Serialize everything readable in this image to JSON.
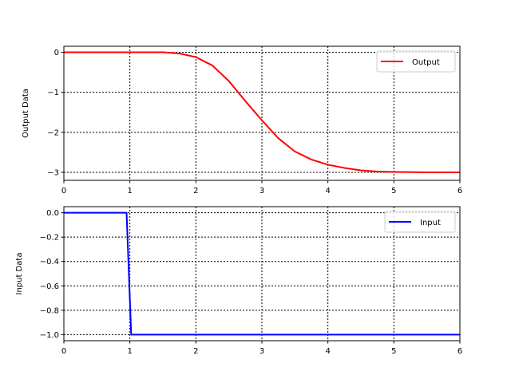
{
  "chart_data": [
    {
      "type": "line",
      "title": "",
      "xlabel": "",
      "ylabel": "Output Data",
      "xlim": [
        0,
        6
      ],
      "ylim": [
        -3.2,
        0.15
      ],
      "xticks": [
        0,
        1,
        2,
        3,
        4,
        5,
        6
      ],
      "xtick_labels": [
        "0",
        "1",
        "2",
        "3",
        "4",
        "5",
        "6"
      ],
      "yticks": [
        0,
        -1,
        -2,
        -3
      ],
      "ytick_labels": [
        "0",
        "−1",
        "−2",
        "−3"
      ],
      "grid": true,
      "legend_position": "top-right",
      "series": [
        {
          "name": "Output",
          "color": "#ff0000",
          "x": [
            0,
            1,
            1.5,
            1.75,
            2,
            2.25,
            2.5,
            2.75,
            3,
            3.25,
            3.5,
            3.75,
            4,
            4.25,
            4.5,
            4.75,
            5,
            5.5,
            6
          ],
          "y": [
            0,
            0,
            0,
            -0.03,
            -0.12,
            -0.33,
            -0.72,
            -1.22,
            -1.7,
            -2.15,
            -2.48,
            -2.68,
            -2.81,
            -2.89,
            -2.95,
            -2.98,
            -2.99,
            -3.0,
            -3.0
          ]
        }
      ]
    },
    {
      "type": "line",
      "title": "",
      "xlabel": "",
      "ylabel": "Input Data",
      "xlim": [
        0,
        6
      ],
      "ylim": [
        -1.05,
        0.05
      ],
      "xticks": [
        0,
        1,
        2,
        3,
        4,
        5,
        6
      ],
      "xtick_labels": [
        "0",
        "1",
        "2",
        "3",
        "4",
        "5",
        "6"
      ],
      "yticks": [
        0,
        -0.2,
        -0.4,
        -0.6,
        -0.8,
        -1.0
      ],
      "ytick_labels": [
        "0.0",
        "−0.2",
        "−0.4",
        "−0.6",
        "−0.8",
        "−1.0"
      ],
      "grid": true,
      "legend_position": "top-right",
      "series": [
        {
          "name": "Input",
          "color": "#0000ff",
          "x": [
            0,
            0.95,
            1.02,
            6
          ],
          "y": [
            0,
            0,
            -1,
            -1
          ]
        }
      ]
    }
  ]
}
